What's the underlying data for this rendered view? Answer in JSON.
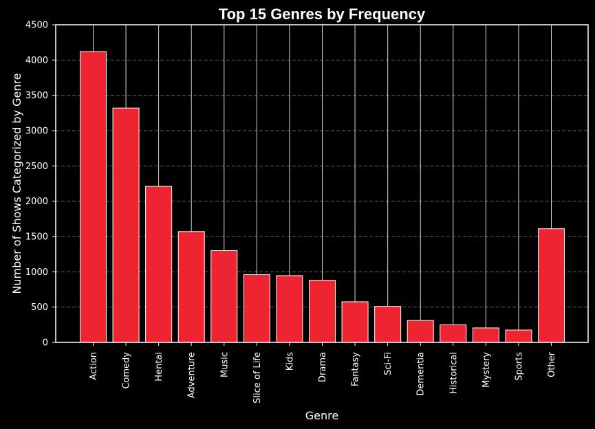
{
  "chart_data": {
    "type": "bar",
    "title": "Top 15 Genres by Frequency",
    "xlabel": "Genre",
    "ylabel": "Number of Shows Categorized by Genre",
    "categories": [
      "Action",
      "Comedy",
      "Hentai",
      "Adventure",
      "Music",
      "Slice of Life",
      "Kids",
      "Drama",
      "Fantasy",
      "Sci-Fi",
      "Dementia",
      "Historical",
      "Mystery",
      "Sports",
      "Other"
    ],
    "values": [
      4120,
      3320,
      2210,
      1570,
      1300,
      960,
      945,
      880,
      575,
      510,
      310,
      250,
      205,
      175,
      1610
    ],
    "ylim": [
      0,
      4500
    ],
    "yticks": [
      "0",
      "500",
      "1000",
      "1500",
      "2000",
      "2500",
      "3000",
      "3500",
      "4000",
      "4500"
    ],
    "ytick_values": [
      0,
      500,
      1000,
      1500,
      2000,
      2500,
      3000,
      3500,
      4000,
      4500
    ],
    "grid": {
      "y": "dashed",
      "x": "solid"
    },
    "colors": {
      "background": "#000000",
      "bar": "#ee2530",
      "bar_edge": "#ffffff",
      "axes": "#ffffff",
      "grid": "#666666",
      "text": "#ffffff"
    }
  }
}
